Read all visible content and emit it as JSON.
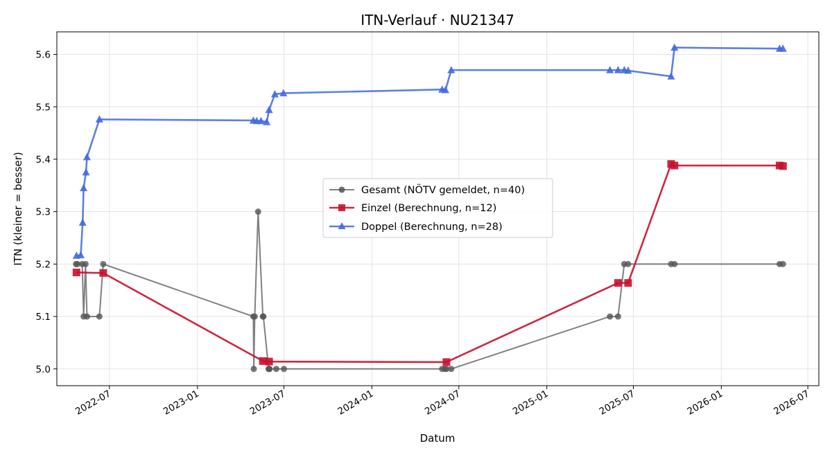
{
  "chart_data": {
    "type": "line",
    "title": "ITN-Verlauf · NU21347",
    "xlabel": "Datum",
    "ylabel": "ITN  (kleiner = besser)",
    "x_axis_type": "date",
    "xlim": [
      "2022-03-13",
      "2026-07-24"
    ],
    "ylim": [
      4.968,
      5.643
    ],
    "x_ticks": [
      {
        "date": "2022-07-01",
        "label": "2022-07"
      },
      {
        "date": "2023-01-01",
        "label": "2023-01"
      },
      {
        "date": "2023-07-01",
        "label": "2023-07"
      },
      {
        "date": "2024-01-01",
        "label": "2024-01"
      },
      {
        "date": "2024-07-01",
        "label": "2024-07"
      },
      {
        "date": "2025-01-01",
        "label": "2025-01"
      },
      {
        "date": "2025-07-01",
        "label": "2025-07"
      },
      {
        "date": "2026-01-01",
        "label": "2026-01"
      },
      {
        "date": "2026-07-01",
        "label": "2026-07"
      }
    ],
    "y_ticks": [
      5.0,
      5.1,
      5.2,
      5.3,
      5.4,
      5.5,
      5.6
    ],
    "grid": true,
    "legend_position": "center",
    "series": [
      {
        "name": "Gesamt (NÖTV gemeldet, n=40)",
        "color": "#555555",
        "marker": "circle",
        "points": [
          {
            "x": "2022-04-22",
            "y": 5.2
          },
          {
            "x": "2022-04-25",
            "y": 5.2
          },
          {
            "x": "2022-05-05",
            "y": 5.2
          },
          {
            "x": "2022-05-08",
            "y": 5.1
          },
          {
            "x": "2022-05-12",
            "y": 5.2
          },
          {
            "x": "2022-05-15",
            "y": 5.1
          },
          {
            "x": "2022-06-10",
            "y": 5.1
          },
          {
            "x": "2022-06-18",
            "y": 5.2
          },
          {
            "x": "2023-04-28",
            "y": 5.1
          },
          {
            "x": "2023-04-29",
            "y": 5.0
          },
          {
            "x": "2023-05-01",
            "y": 5.1
          },
          {
            "x": "2023-05-08",
            "y": 5.3
          },
          {
            "x": "2023-05-18",
            "y": 5.1
          },
          {
            "x": "2023-05-19",
            "y": 5.1
          },
          {
            "x": "2023-05-30",
            "y": 5.0
          },
          {
            "x": "2023-05-31",
            "y": 5.0
          },
          {
            "x": "2023-06-01",
            "y": 5.0
          },
          {
            "x": "2023-06-15",
            "y": 5.0
          },
          {
            "x": "2023-07-01",
            "y": 5.0
          },
          {
            "x": "2024-05-27",
            "y": 5.0
          },
          {
            "x": "2024-06-02",
            "y": 5.0
          },
          {
            "x": "2024-06-05",
            "y": 5.0
          },
          {
            "x": "2024-06-15",
            "y": 5.0
          },
          {
            "x": "2025-05-13",
            "y": 5.1
          },
          {
            "x": "2025-05-30",
            "y": 5.1
          },
          {
            "x": "2025-06-12",
            "y": 5.2
          },
          {
            "x": "2025-06-20",
            "y": 5.2
          },
          {
            "x": "2025-09-18",
            "y": 5.2
          },
          {
            "x": "2025-09-25",
            "y": 5.2
          },
          {
            "x": "2026-05-03",
            "y": 5.2
          },
          {
            "x": "2026-05-10",
            "y": 5.2
          }
        ]
      },
      {
        "name": "Einzel (Berechnung, n=12)",
        "color": "#c8102e",
        "marker": "square",
        "points": [
          {
            "x": "2022-04-23",
            "y": 5.184
          },
          {
            "x": "2022-06-18",
            "y": 5.183
          },
          {
            "x": "2023-05-18",
            "y": 5.015
          },
          {
            "x": "2023-05-31",
            "y": 5.014
          },
          {
            "x": "2024-06-05",
            "y": 5.013
          },
          {
            "x": "2025-05-30",
            "y": 5.164
          },
          {
            "x": "2025-06-20",
            "y": 5.164
          },
          {
            "x": "2025-09-18",
            "y": 5.391
          },
          {
            "x": "2025-09-25",
            "y": 5.388
          },
          {
            "x": "2026-05-03",
            "y": 5.388
          },
          {
            "x": "2026-05-10",
            "y": 5.387
          }
        ]
      },
      {
        "name": "Doppel (Berechnung, n=28)",
        "color": "#4169e1",
        "marker": "triangle",
        "points": [
          {
            "x": "2022-04-23",
            "y": 5.216
          },
          {
            "x": "2022-05-02",
            "y": 5.217
          },
          {
            "x": "2022-05-06",
            "y": 5.279
          },
          {
            "x": "2022-05-08",
            "y": 5.345
          },
          {
            "x": "2022-05-13",
            "y": 5.375
          },
          {
            "x": "2022-05-15",
            "y": 5.404
          },
          {
            "x": "2022-06-10",
            "y": 5.476
          },
          {
            "x": "2023-04-28",
            "y": 5.474
          },
          {
            "x": "2023-05-05",
            "y": 5.473
          },
          {
            "x": "2023-05-14",
            "y": 5.473
          },
          {
            "x": "2023-05-26",
            "y": 5.471
          },
          {
            "x": "2023-05-31",
            "y": 5.494
          },
          {
            "x": "2023-06-12",
            "y": 5.524
          },
          {
            "x": "2023-06-30",
            "y": 5.526
          },
          {
            "x": "2024-05-27",
            "y": 5.533
          },
          {
            "x": "2024-06-03",
            "y": 5.532
          },
          {
            "x": "2024-06-15",
            "y": 5.57
          },
          {
            "x": "2025-05-13",
            "y": 5.57
          },
          {
            "x": "2025-05-30",
            "y": 5.57
          },
          {
            "x": "2025-06-12",
            "y": 5.57
          },
          {
            "x": "2025-06-20",
            "y": 5.569
          },
          {
            "x": "2025-09-18",
            "y": 5.558
          },
          {
            "x": "2025-09-25",
            "y": 5.613
          },
          {
            "x": "2026-05-03",
            "y": 5.611
          },
          {
            "x": "2026-05-10",
            "y": 5.611
          }
        ]
      }
    ]
  }
}
